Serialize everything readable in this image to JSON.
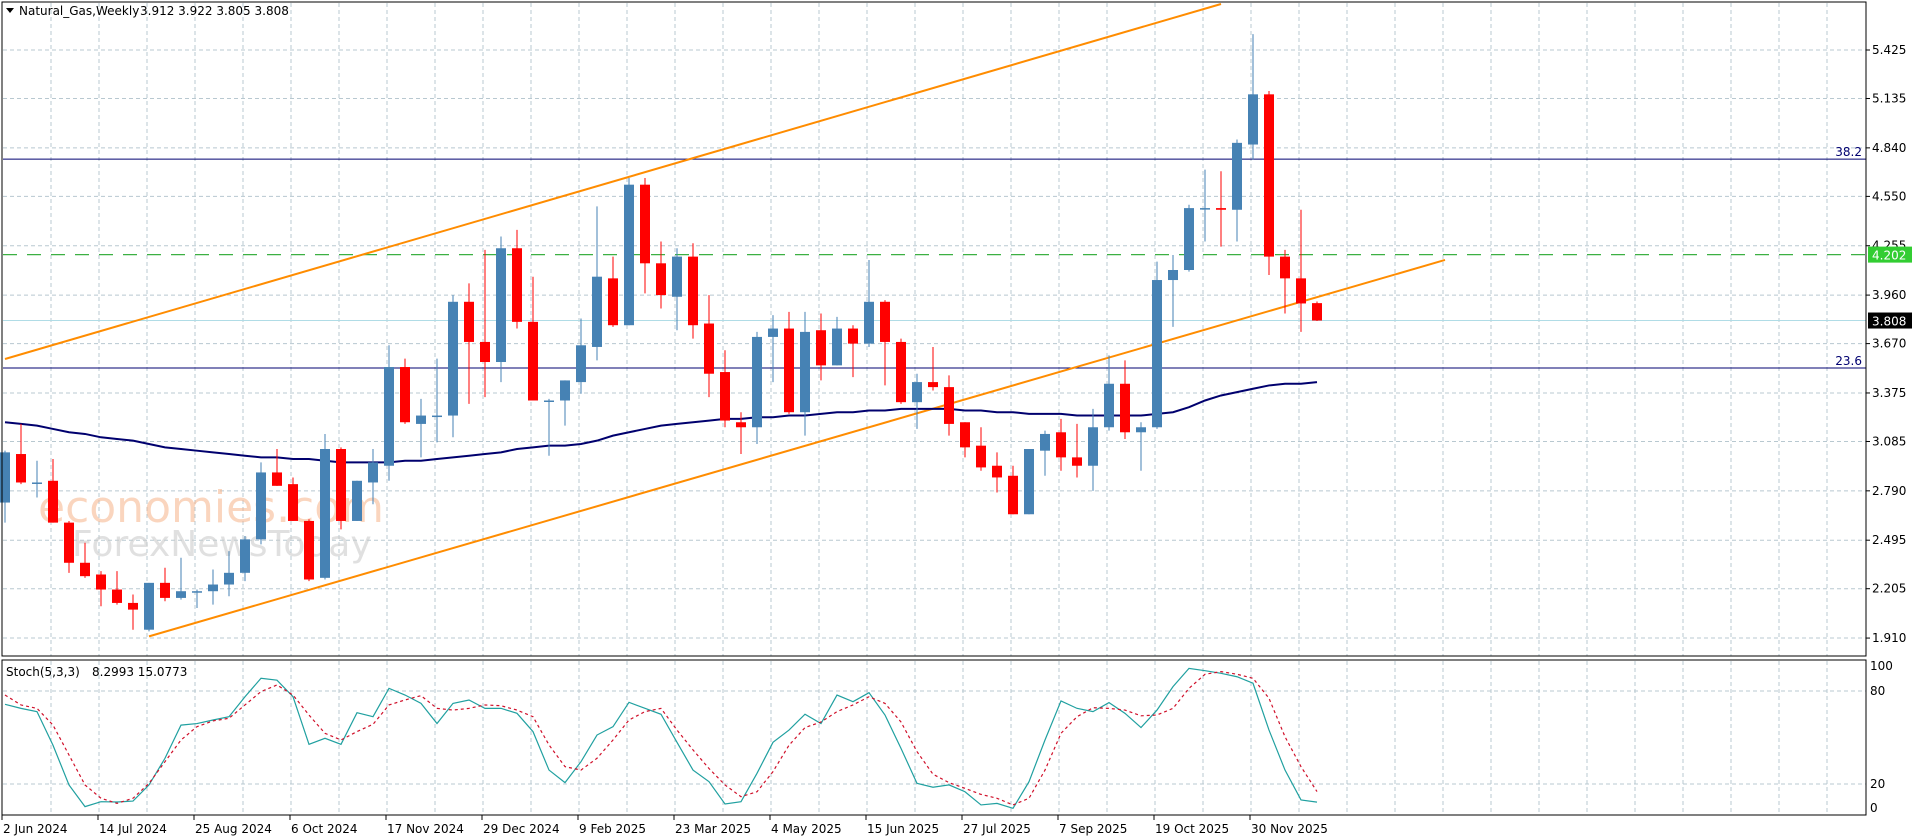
{
  "header": {
    "symbol_label": "Natural_Gas,Weekly",
    "ohlc_text": "3.912 3.922 3.805 3.808"
  },
  "watermark": {
    "line1": "economies.com",
    "line2": "ForexNewsToday"
  },
  "colors": {
    "bull": "#4682B4",
    "bear": "#FF0000",
    "ma": "#00006E",
    "channel": "#FF8C00",
    "fib": "#000070",
    "level": "#3CB043",
    "level_label_bg": "#32CD32",
    "bid_line": "#B0DCE6",
    "stoch_k": "#20A0A0",
    "stoch_d": "#D0102A",
    "grid": "#B8C8D0"
  },
  "chart_data": [
    {
      "type": "candlestick",
      "title": "Natural_Gas,Weekly",
      "y_axis": {
        "ylim": [
          1.83,
          5.725
        ],
        "ticks": [
          "5.425",
          "5.135",
          "4.840",
          "4.550",
          "4.255",
          "3.960",
          "3.670",
          "3.375",
          "3.085",
          "2.790",
          "2.495",
          "2.205",
          "1.910"
        ]
      },
      "x_axis": {
        "first_bar_date": "2 Jun 2024",
        "bar_period": "weekly",
        "tick_labels": [
          {
            "bar": 0,
            "label": "2 Jun 2024"
          },
          {
            "bar": 6,
            "label": "14 Jul 2024"
          },
          {
            "bar": 12,
            "label": "25 Aug 2024"
          },
          {
            "bar": 18,
            "label": "6 Oct 2024"
          },
          {
            "bar": 24,
            "label": "17 Nov 2024"
          },
          {
            "bar": 30,
            "label": "29 Dec 2024"
          },
          {
            "bar": 36,
            "label": "9 Feb 2025"
          },
          {
            "bar": 42,
            "label": "23 Mar 2025"
          },
          {
            "bar": 48,
            "label": "4 May 2025"
          },
          {
            "bar": 54,
            "label": "15 Jun 2025"
          },
          {
            "bar": 60,
            "label": "27 Jul 2025"
          },
          {
            "bar": 66,
            "label": "7 Sep 2025"
          },
          {
            "bar": 72,
            "label": "19 Oct 2025"
          },
          {
            "bar": 78,
            "label": "30 Nov 2025"
          }
        ]
      },
      "ohlc": [
        [
          2.72,
          3.03,
          2.6,
          3.02
        ],
        [
          3.01,
          3.19,
          2.83,
          2.84
        ],
        [
          2.84,
          2.97,
          2.75,
          2.84
        ],
        [
          2.85,
          2.98,
          2.6,
          2.6
        ],
        [
          2.6,
          2.61,
          2.3,
          2.36
        ],
        [
          2.36,
          2.48,
          2.27,
          2.28
        ],
        [
          2.29,
          2.31,
          2.1,
          2.2
        ],
        [
          2.2,
          2.31,
          2.11,
          2.12
        ],
        [
          2.12,
          2.17,
          1.96,
          2.08
        ],
        [
          1.96,
          2.24,
          1.95,
          2.24
        ],
        [
          2.24,
          2.33,
          2.13,
          2.15
        ],
        [
          2.15,
          2.39,
          2.14,
          2.19
        ],
        [
          2.19,
          2.2,
          2.09,
          2.19
        ],
        [
          2.19,
          2.32,
          2.11,
          2.23
        ],
        [
          2.23,
          2.43,
          2.16,
          2.3
        ],
        [
          2.3,
          2.52,
          2.25,
          2.5
        ],
        [
          2.5,
          2.96,
          2.47,
          2.9
        ],
        [
          2.9,
          3.04,
          2.82,
          2.82
        ],
        [
          2.83,
          2.87,
          2.61,
          2.61
        ],
        [
          2.61,
          2.62,
          2.25,
          2.26
        ],
        [
          2.27,
          3.13,
          2.26,
          3.04
        ],
        [
          3.04,
          3.05,
          2.56,
          2.61
        ],
        [
          2.61,
          2.85,
          2.61,
          2.85
        ],
        [
          2.84,
          3.04,
          2.71,
          2.96
        ],
        [
          2.94,
          3.66,
          2.85,
          3.53
        ],
        [
          3.53,
          3.58,
          3.19,
          3.2
        ],
        [
          3.19,
          3.34,
          2.99,
          3.24
        ],
        [
          3.24,
          3.58,
          3.08,
          3.24
        ],
        [
          3.24,
          3.96,
          3.11,
          3.92
        ],
        [
          3.92,
          4.03,
          3.31,
          3.68
        ],
        [
          3.68,
          4.23,
          3.35,
          3.56
        ],
        [
          3.56,
          4.31,
          3.44,
          4.24
        ],
        [
          4.24,
          4.35,
          3.76,
          3.8
        ],
        [
          3.8,
          4.07,
          3.33,
          3.33
        ],
        [
          3.33,
          3.34,
          3.0,
          3.33
        ],
        [
          3.33,
          3.45,
          3.18,
          3.45
        ],
        [
          3.44,
          3.82,
          3.37,
          3.66
        ],
        [
          3.65,
          4.49,
          3.57,
          4.07
        ],
        [
          4.06,
          4.19,
          3.77,
          3.78
        ],
        [
          3.78,
          4.66,
          3.78,
          4.62
        ],
        [
          4.62,
          4.66,
          3.97,
          4.15
        ],
        [
          4.15,
          4.28,
          3.88,
          3.96
        ],
        [
          3.95,
          4.24,
          3.75,
          4.19
        ],
        [
          4.19,
          4.27,
          3.7,
          3.78
        ],
        [
          3.79,
          3.96,
          3.35,
          3.49
        ],
        [
          3.5,
          3.63,
          3.17,
          3.21
        ],
        [
          3.2,
          3.26,
          3.01,
          3.17
        ],
        [
          3.17,
          3.74,
          3.07,
          3.71
        ],
        [
          3.71,
          3.84,
          3.44,
          3.76
        ],
        [
          3.76,
          3.86,
          3.25,
          3.26
        ],
        [
          3.26,
          3.86,
          3.12,
          3.74
        ],
        [
          3.75,
          3.85,
          3.45,
          3.54
        ],
        [
          3.54,
          3.83,
          3.54,
          3.76
        ],
        [
          3.76,
          3.78,
          3.47,
          3.67
        ],
        [
          3.67,
          4.17,
          3.65,
          3.92
        ],
        [
          3.92,
          3.93,
          3.42,
          3.68
        ],
        [
          3.68,
          3.7,
          3.31,
          3.32
        ],
        [
          3.32,
          3.49,
          3.16,
          3.44
        ],
        [
          3.44,
          3.65,
          3.39,
          3.41
        ],
        [
          3.41,
          3.48,
          3.12,
          3.19
        ],
        [
          3.2,
          3.2,
          2.99,
          3.05
        ],
        [
          3.06,
          3.17,
          2.91,
          2.93
        ],
        [
          2.94,
          3.02,
          2.78,
          2.87
        ],
        [
          2.88,
          2.94,
          2.65,
          2.65
        ],
        [
          2.65,
          3.04,
          2.65,
          3.04
        ],
        [
          3.03,
          3.15,
          2.88,
          3.13
        ],
        [
          3.14,
          3.22,
          2.91,
          2.99
        ],
        [
          2.99,
          3.19,
          2.87,
          2.94
        ],
        [
          2.94,
          3.28,
          2.79,
          3.17
        ],
        [
          3.17,
          3.6,
          3.15,
          3.43
        ],
        [
          3.43,
          3.57,
          3.1,
          3.14
        ],
        [
          3.14,
          3.2,
          2.91,
          3.17
        ],
        [
          3.17,
          4.16,
          3.16,
          4.05
        ],
        [
          4.05,
          4.2,
          3.77,
          4.11
        ],
        [
          4.11,
          4.5,
          4.1,
          4.48
        ],
        [
          4.48,
          4.71,
          4.28,
          4.48
        ],
        [
          4.48,
          4.7,
          4.25,
          4.47
        ],
        [
          4.47,
          4.89,
          4.28,
          4.87
        ],
        [
          4.86,
          5.52,
          4.77,
          5.16
        ],
        [
          5.16,
          5.18,
          4.08,
          4.19
        ],
        [
          4.19,
          4.23,
          3.85,
          4.06
        ],
        [
          4.06,
          4.47,
          3.74,
          3.91
        ],
        [
          3.912,
          3.922,
          3.805,
          3.808
        ]
      ],
      "moving_average": [
        3.2,
        3.19,
        3.18,
        3.16,
        3.14,
        3.13,
        3.11,
        3.1,
        3.09,
        3.07,
        3.05,
        3.04,
        3.03,
        3.02,
        3.01,
        3.0,
        2.99,
        2.99,
        2.98,
        2.98,
        2.97,
        2.96,
        2.96,
        2.96,
        2.96,
        2.97,
        2.97,
        2.98,
        2.99,
        3.0,
        3.01,
        3.02,
        3.04,
        3.05,
        3.06,
        3.06,
        3.07,
        3.09,
        3.12,
        3.14,
        3.16,
        3.18,
        3.19,
        3.2,
        3.21,
        3.22,
        3.22,
        3.23,
        3.23,
        3.24,
        3.24,
        3.25,
        3.26,
        3.26,
        3.27,
        3.27,
        3.28,
        3.28,
        3.28,
        3.28,
        3.27,
        3.27,
        3.26,
        3.26,
        3.25,
        3.25,
        3.25,
        3.24,
        3.24,
        3.24,
        3.24,
        3.24,
        3.25,
        3.26,
        3.29,
        3.33,
        3.36,
        3.38,
        3.4,
        3.42,
        3.43,
        3.43,
        3.44
      ],
      "channel_lines": [
        {
          "name": "upper",
          "from": {
            "bar": 0,
            "price": 3.578
          },
          "to": {
            "bar": 76,
            "price": 5.7
          }
        },
        {
          "name": "lower",
          "from": {
            "bar": 9,
            "price": 1.92
          },
          "to": {
            "bar": 90,
            "price": 4.17
          }
        }
      ],
      "fib_levels": [
        {
          "label": "38.2",
          "price": 4.773
        },
        {
          "label": "23.6",
          "price": 3.524
        }
      ],
      "horizontal_level": {
        "label": "4.202",
        "price": 4.202
      },
      "last_price": {
        "label": "3.808",
        "price": 3.808
      }
    },
    {
      "type": "line",
      "title": "Stoch(5,3,3)",
      "values_text": "8.2993 15.0773",
      "ylim": [
        0,
        100
      ],
      "y_ticks": [
        "100",
        "80",
        "20",
        "0"
      ],
      "y_tick_values": [
        100,
        80,
        20,
        0
      ],
      "series": [
        {
          "name": "%K",
          "values": [
            71.4,
            68.8,
            66.7,
            45,
            19.4,
            5.4,
            8.6,
            8.4,
            9,
            19.4,
            36.6,
            58,
            59,
            61.3,
            63.4,
            76.3,
            88.2,
            87,
            76.3,
            45.6,
            49.5,
            45.6,
            66,
            63.4,
            81.7,
            77.4,
            72,
            59,
            72,
            74.2,
            68.8,
            68.8,
            65.6,
            53.8,
            29,
            20.9,
            34.4,
            51.6,
            57,
            72.7,
            68.8,
            65,
            46.9,
            29,
            21.5,
            7.1,
            8.6,
            26.9,
            46.9,
            54.8,
            65,
            59,
            77.4,
            73.1,
            78.9,
            64.5,
            43,
            20.4,
            17.9,
            19.4,
            15,
            6.5,
            7.5,
            4.3,
            21.5,
            48.4,
            73.6,
            68.8,
            66.7,
            72.5,
            65.6,
            56.4,
            67.7,
            82.8,
            94.6,
            93.1,
            91.4,
            89.2,
            85,
            54.8,
            29,
            9.7,
            8.3
          ]
        },
        {
          "name": "%D",
          "values": [
            77.4,
            71,
            68.8,
            58,
            38.7,
            19.4,
            10.8,
            7.5,
            10.8,
            20.4,
            34.4,
            48.4,
            57,
            60.7,
            62.4,
            71,
            79.6,
            83.9,
            77.4,
            64.5,
            52.7,
            48.4,
            53.8,
            58.5,
            71,
            74.2,
            77,
            68.8,
            67.7,
            68.8,
            71,
            70.5,
            67.7,
            63.4,
            45.2,
            31.2,
            29,
            36.6,
            48.4,
            61.3,
            66.7,
            68.8,
            54.8,
            42,
            30,
            19.4,
            11.8,
            15,
            28,
            45,
            56.4,
            60,
            66.7,
            71,
            76.3,
            72,
            60,
            40.9,
            26.3,
            20.9,
            17.2,
            13.3,
            10.8,
            6.5,
            10.8,
            29,
            52.7,
            63.4,
            69.2,
            68.8,
            67.7,
            64,
            64.5,
            68.8,
            81.7,
            90.8,
            92.5,
            90.8,
            88.2,
            75.3,
            50.5,
            31.2,
            15.1
          ]
        }
      ]
    }
  ]
}
